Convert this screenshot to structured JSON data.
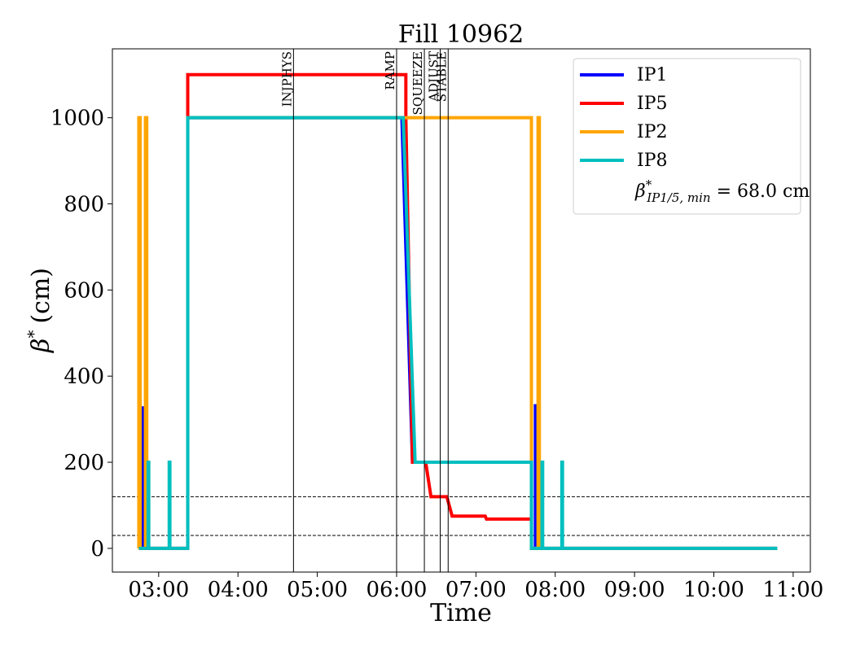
{
  "chart_data": {
    "type": "line",
    "title": "Fill 10962",
    "xlabel": "Time",
    "ylabel_base": "β",
    "ylabel_sup": "*",
    "ylabel_unit": "(cm)",
    "xlim": [
      "02:25",
      "11:13"
    ],
    "ylim": [
      -55,
      1160
    ],
    "xticks": [
      "03:00",
      "04:00",
      "05:00",
      "06:00",
      "07:00",
      "08:00",
      "09:00",
      "10:00",
      "11:00"
    ],
    "yticks": [
      0,
      200,
      400,
      600,
      800,
      1000
    ],
    "grid": false,
    "legend": {
      "placement": "top-right",
      "entries": [
        {
          "label": "IP1",
          "color": "#0000ff"
        },
        {
          "label": "IP5",
          "color": "#ff0000"
        },
        {
          "label": "IP2",
          "color": "#ffa500"
        },
        {
          "label": "IP8",
          "color": "#00bfbf"
        }
      ],
      "annotation": {
        "beta": "β",
        "sup": "*",
        "sub": "IP1/5, min",
        "value": " = 68.0 cm"
      }
    },
    "hlines": [
      120,
      30
    ],
    "vlines": [
      {
        "label": "INJPHYS",
        "time": "04:42"
      },
      {
        "label": "RAMP",
        "time": "06:00"
      },
      {
        "label": "SQUEEZE",
        "time": "06:21"
      },
      {
        "label": "ADJUST",
        "time": "06:33"
      },
      {
        "label": "STABLE",
        "time": "06:39"
      }
    ],
    "series": [
      {
        "name": "IP1",
        "color": "#0000ff",
        "points": [
          [
            "02:45",
            0
          ],
          [
            "02:48",
            0
          ],
          [
            "02:48",
            330
          ],
          [
            "02:48.5",
            0
          ],
          [
            "03:22",
            0
          ],
          [
            "03:22",
            1000
          ],
          [
            "06:04",
            1000
          ],
          [
            "06:12",
            200
          ],
          [
            "07:42",
            200
          ],
          [
            "07:42",
            0
          ],
          [
            "07:45",
            0
          ],
          [
            "07:45",
            335
          ],
          [
            "07:45.5",
            0
          ],
          [
            "10:48",
            0
          ]
        ]
      },
      {
        "name": "IP5",
        "color": "#ff0000",
        "points": [
          [
            "03:22",
            1000
          ],
          [
            "03:22",
            1100
          ],
          [
            "06:07",
            1100
          ],
          [
            "06:07",
            1000
          ],
          [
            "06:12",
            200
          ],
          [
            "06:22",
            200
          ],
          [
            "06:26",
            120
          ],
          [
            "06:38",
            120
          ],
          [
            "06:42",
            75
          ],
          [
            "07:07",
            75
          ],
          [
            "07:08",
            68
          ],
          [
            "07:43",
            68
          ]
        ]
      },
      {
        "name": "IP2",
        "color": "#ffa500",
        "points": [
          [
            "02:45",
            0
          ],
          [
            "02:45",
            1000
          ],
          [
            "02:46",
            1000
          ],
          [
            "02:46",
            0
          ],
          [
            "02:50",
            0
          ],
          [
            "02:50",
            1000
          ],
          [
            "02:51",
            1000
          ],
          [
            "02:51",
            0
          ],
          [
            "03:22",
            0
          ],
          [
            "03:22",
            1000
          ],
          [
            "07:42",
            1000
          ],
          [
            "07:42",
            0
          ],
          [
            "07:47",
            0
          ],
          [
            "07:47",
            1000
          ],
          [
            "07:48",
            1000
          ],
          [
            "07:48",
            0
          ],
          [
            "10:48",
            0
          ]
        ]
      },
      {
        "name": "IP8",
        "color": "#00bfbf",
        "points": [
          [
            "02:45",
            0
          ],
          [
            "02:52",
            0
          ],
          [
            "02:52",
            200
          ],
          [
            "02:52.5",
            200
          ],
          [
            "02:52.5",
            0
          ],
          [
            "03:08",
            0
          ],
          [
            "03:08",
            200
          ],
          [
            "03:08.5",
            200
          ],
          [
            "03:08.5",
            0
          ],
          [
            "03:22",
            0
          ],
          [
            "03:22",
            1000
          ],
          [
            "06:05",
            1000
          ],
          [
            "06:14",
            200
          ],
          [
            "07:42",
            200
          ],
          [
            "07:42",
            0
          ],
          [
            "07:50",
            0
          ],
          [
            "07:50",
            200
          ],
          [
            "07:50.5",
            200
          ],
          [
            "07:50.5",
            0
          ],
          [
            "08:05",
            0
          ],
          [
            "08:05",
            200
          ],
          [
            "08:05.5",
            200
          ],
          [
            "08:05.5",
            0
          ],
          [
            "10:48",
            0
          ]
        ]
      }
    ]
  }
}
